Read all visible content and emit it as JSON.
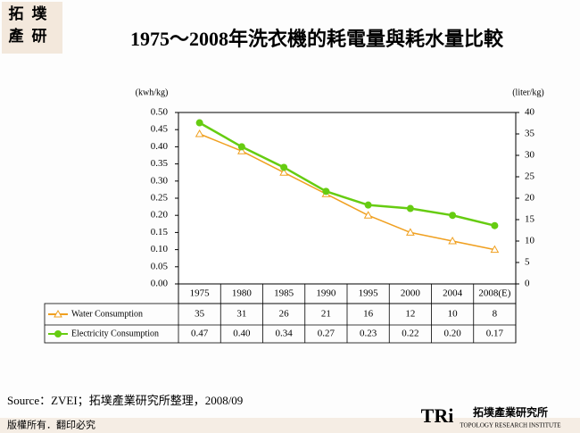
{
  "corner_logo": [
    "拓",
    "墣",
    "產",
    "研"
  ],
  "chart_data": {
    "type": "line",
    "title": "1975～2008年洗衣機的耗電量與耗水量比較",
    "y_label": "(kwh/kg)",
    "y2_label": "(liter/kg)",
    "categories": [
      "1975",
      "1980",
      "1985",
      "1990",
      "1995",
      "2000",
      "2004",
      "2008(E)"
    ],
    "series": [
      {
        "name": "Water Consumption",
        "color": "#f0a020",
        "marker": "triangle",
        "axis": "y2",
        "values": [
          35,
          31,
          26,
          21,
          16,
          12,
          10,
          8
        ]
      },
      {
        "name": "Electricity Consumption",
        "color": "#66cc11",
        "marker": "circle",
        "axis": "y",
        "values": [
          0.47,
          0.4,
          0.34,
          0.27,
          0.23,
          0.22,
          0.2,
          0.17
        ],
        "value_labels": [
          "0.47",
          "0.40",
          "0.34",
          "0.27",
          "0.23",
          "0.22",
          "0.20",
          "0.17"
        ]
      }
    ],
    "ylim": [
      0,
      0.5
    ],
    "yticks": [
      {
        "value": 0,
        "label": "0.00"
      },
      {
        "value": 0.05,
        "label": "0.05"
      },
      {
        "value": 0.1,
        "label": "0.10"
      },
      {
        "value": 0.15,
        "label": "0.15"
      },
      {
        "value": 0.2,
        "label": "0.20"
      },
      {
        "value": 0.25,
        "label": "0.25"
      },
      {
        "value": 0.3,
        "label": "0.30"
      },
      {
        "value": 0.35,
        "label": "0.35"
      },
      {
        "value": 0.4,
        "label": "0.40"
      },
      {
        "value": 0.45,
        "label": "0.45"
      },
      {
        "value": 0.5,
        "label": "0.50"
      }
    ],
    "y2lim": [
      0,
      40
    ],
    "y2ticks": [
      0,
      5,
      10,
      15,
      20,
      25,
      30,
      35,
      40
    ],
    "grid": false
  },
  "source": "Source：ZVEI；拓墣產業研究所整理，2008/09",
  "footer": "版權所有．翻印必究",
  "brand": {
    "mark": "TRi",
    "name": "拓墣產業研究所",
    "subtitle": "TOPOLOGY RESEARCH INSTITUTE"
  }
}
